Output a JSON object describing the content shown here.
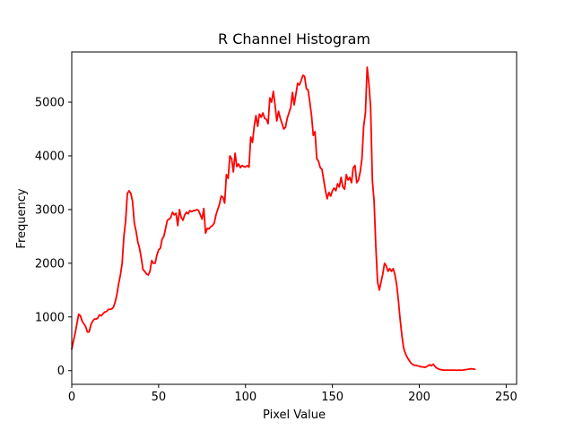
{
  "chart_data": {
    "type": "line",
    "title": "R Channel Histogram",
    "xlabel": "Pixel Value",
    "ylabel": "Frequency",
    "xlim": [
      0,
      256
    ],
    "ylim": [
      -255,
      5935
    ],
    "xticks": [
      0,
      50,
      100,
      150,
      200,
      250
    ],
    "yticks": [
      0,
      1000,
      2000,
      3000,
      4000,
      5000
    ],
    "grid": false,
    "legend": "none",
    "line_color": "#ff0000",
    "series": [
      {
        "points": [
          [
            0,
            400
          ],
          [
            1,
            560
          ],
          [
            2,
            700
          ],
          [
            3,
            880
          ],
          [
            4,
            1050
          ],
          [
            5,
            1020
          ],
          [
            6,
            920
          ],
          [
            7,
            870
          ],
          [
            8,
            820
          ],
          [
            9,
            720
          ],
          [
            10,
            720
          ],
          [
            11,
            850
          ],
          [
            12,
            920
          ],
          [
            13,
            960
          ],
          [
            14,
            960
          ],
          [
            15,
            980
          ],
          [
            16,
            1040
          ],
          [
            17,
            1020
          ],
          [
            18,
            1060
          ],
          [
            19,
            1090
          ],
          [
            20,
            1100
          ],
          [
            21,
            1140
          ],
          [
            22,
            1140
          ],
          [
            23,
            1150
          ],
          [
            24,
            1180
          ],
          [
            25,
            1280
          ],
          [
            26,
            1420
          ],
          [
            27,
            1620
          ],
          [
            28,
            1780
          ],
          [
            29,
            2000
          ],
          [
            30,
            2500
          ],
          [
            31,
            2780
          ],
          [
            32,
            3300
          ],
          [
            33,
            3350
          ],
          [
            34,
            3300
          ],
          [
            35,
            3150
          ],
          [
            36,
            2750
          ],
          [
            37,
            2600
          ],
          [
            38,
            2400
          ],
          [
            39,
            2280
          ],
          [
            40,
            2100
          ],
          [
            41,
            1880
          ],
          [
            42,
            1850
          ],
          [
            43,
            1800
          ],
          [
            44,
            1780
          ],
          [
            45,
            1850
          ],
          [
            46,
            2050
          ],
          [
            47,
            2000
          ],
          [
            48,
            2000
          ],
          [
            49,
            2150
          ],
          [
            50,
            2250
          ],
          [
            51,
            2280
          ],
          [
            52,
            2450
          ],
          [
            53,
            2500
          ],
          [
            54,
            2650
          ],
          [
            55,
            2800
          ],
          [
            56,
            2820
          ],
          [
            57,
            2850
          ],
          [
            58,
            2950
          ],
          [
            59,
            2900
          ],
          [
            60,
            2930
          ],
          [
            61,
            2700
          ],
          [
            62,
            3000
          ],
          [
            63,
            2850
          ],
          [
            64,
            2800
          ],
          [
            65,
            2900
          ],
          [
            66,
            2950
          ],
          [
            67,
            2920
          ],
          [
            68,
            2980
          ],
          [
            69,
            2960
          ],
          [
            70,
            2980
          ],
          [
            71,
            2980
          ],
          [
            72,
            3000
          ],
          [
            73,
            2980
          ],
          [
            74,
            2900
          ],
          [
            75,
            2820
          ],
          [
            76,
            3020
          ],
          [
            77,
            2560
          ],
          [
            78,
            2650
          ],
          [
            79,
            2640
          ],
          [
            80,
            2680
          ],
          [
            81,
            2700
          ],
          [
            82,
            2750
          ],
          [
            83,
            2900
          ],
          [
            84,
            3000
          ],
          [
            85,
            3100
          ],
          [
            86,
            3250
          ],
          [
            87,
            3230
          ],
          [
            88,
            3120
          ],
          [
            89,
            3650
          ],
          [
            90,
            3580
          ],
          [
            91,
            4000
          ],
          [
            92,
            3950
          ],
          [
            93,
            3700
          ],
          [
            94,
            4050
          ],
          [
            95,
            3800
          ],
          [
            96,
            3850
          ],
          [
            97,
            3780
          ],
          [
            98,
            3820
          ],
          [
            99,
            3800
          ],
          [
            100,
            3790
          ],
          [
            101,
            3820
          ],
          [
            102,
            3790
          ],
          [
            103,
            4350
          ],
          [
            104,
            4250
          ],
          [
            105,
            4550
          ],
          [
            106,
            4750
          ],
          [
            107,
            4550
          ],
          [
            108,
            4780
          ],
          [
            109,
            4720
          ],
          [
            110,
            4800
          ],
          [
            111,
            4700
          ],
          [
            112,
            4680
          ],
          [
            113,
            4600
          ],
          [
            114,
            5080
          ],
          [
            115,
            5000
          ],
          [
            116,
            5200
          ],
          [
            117,
            4950
          ],
          [
            118,
            4650
          ],
          [
            119,
            4830
          ],
          [
            120,
            4700
          ],
          [
            121,
            4600
          ],
          [
            122,
            4500
          ],
          [
            123,
            4530
          ],
          [
            124,
            4700
          ],
          [
            125,
            4800
          ],
          [
            126,
            4900
          ],
          [
            127,
            5180
          ],
          [
            128,
            4950
          ],
          [
            129,
            5150
          ],
          [
            130,
            5350
          ],
          [
            131,
            5320
          ],
          [
            132,
            5400
          ],
          [
            133,
            5500
          ],
          [
            134,
            5480
          ],
          [
            135,
            5250
          ],
          [
            136,
            5230
          ],
          [
            137,
            5000
          ],
          [
            138,
            4750
          ],
          [
            139,
            4380
          ],
          [
            140,
            4450
          ],
          [
            141,
            3950
          ],
          [
            142,
            3900
          ],
          [
            143,
            3780
          ],
          [
            144,
            3750
          ],
          [
            145,
            3550
          ],
          [
            146,
            3350
          ],
          [
            147,
            3200
          ],
          [
            148,
            3320
          ],
          [
            149,
            3250
          ],
          [
            150,
            3350
          ],
          [
            151,
            3400
          ],
          [
            152,
            3350
          ],
          [
            153,
            3480
          ],
          [
            154,
            3420
          ],
          [
            155,
            3600
          ],
          [
            156,
            3420
          ],
          [
            157,
            3380
          ],
          [
            158,
            3650
          ],
          [
            159,
            3550
          ],
          [
            160,
            3600
          ],
          [
            161,
            3500
          ],
          [
            162,
            3780
          ],
          [
            163,
            3820
          ],
          [
            164,
            3500
          ],
          [
            165,
            3550
          ],
          [
            166,
            3700
          ],
          [
            167,
            3950
          ],
          [
            168,
            4550
          ],
          [
            169,
            4800
          ],
          [
            170,
            5650
          ],
          [
            171,
            5350
          ],
          [
            172,
            4900
          ],
          [
            173,
            3550
          ],
          [
            174,
            3150
          ],
          [
            175,
            2300
          ],
          [
            176,
            1650
          ],
          [
            177,
            1500
          ],
          [
            178,
            1650
          ],
          [
            179,
            1800
          ],
          [
            180,
            2000
          ],
          [
            181,
            1950
          ],
          [
            182,
            1850
          ],
          [
            183,
            1900
          ],
          [
            184,
            1850
          ],
          [
            185,
            1900
          ],
          [
            186,
            1780
          ],
          [
            187,
            1600
          ],
          [
            188,
            1300
          ],
          [
            189,
            950
          ],
          [
            190,
            650
          ],
          [
            191,
            420
          ],
          [
            192,
            320
          ],
          [
            193,
            250
          ],
          [
            194,
            200
          ],
          [
            195,
            150
          ],
          [
            196,
            120
          ],
          [
            197,
            100
          ],
          [
            198,
            100
          ],
          [
            199,
            90
          ],
          [
            200,
            80
          ],
          [
            201,
            70
          ],
          [
            202,
            70
          ],
          [
            203,
            60
          ],
          [
            204,
            70
          ],
          [
            205,
            90
          ],
          [
            206,
            110
          ],
          [
            207,
            90
          ],
          [
            208,
            120
          ],
          [
            209,
            80
          ],
          [
            210,
            50
          ],
          [
            211,
            30
          ],
          [
            212,
            20
          ],
          [
            213,
            15
          ],
          [
            214,
            10
          ],
          [
            215,
            10
          ],
          [
            216,
            10
          ],
          [
            217,
            10
          ],
          [
            218,
            10
          ],
          [
            219,
            10
          ],
          [
            220,
            10
          ],
          [
            221,
            8
          ],
          [
            222,
            8
          ],
          [
            223,
            10
          ],
          [
            224,
            8
          ],
          [
            225,
            10
          ],
          [
            226,
            15
          ],
          [
            227,
            20
          ],
          [
            228,
            25
          ],
          [
            229,
            30
          ],
          [
            230,
            35
          ],
          [
            231,
            30
          ],
          [
            232,
            25
          ]
        ]
      }
    ]
  }
}
